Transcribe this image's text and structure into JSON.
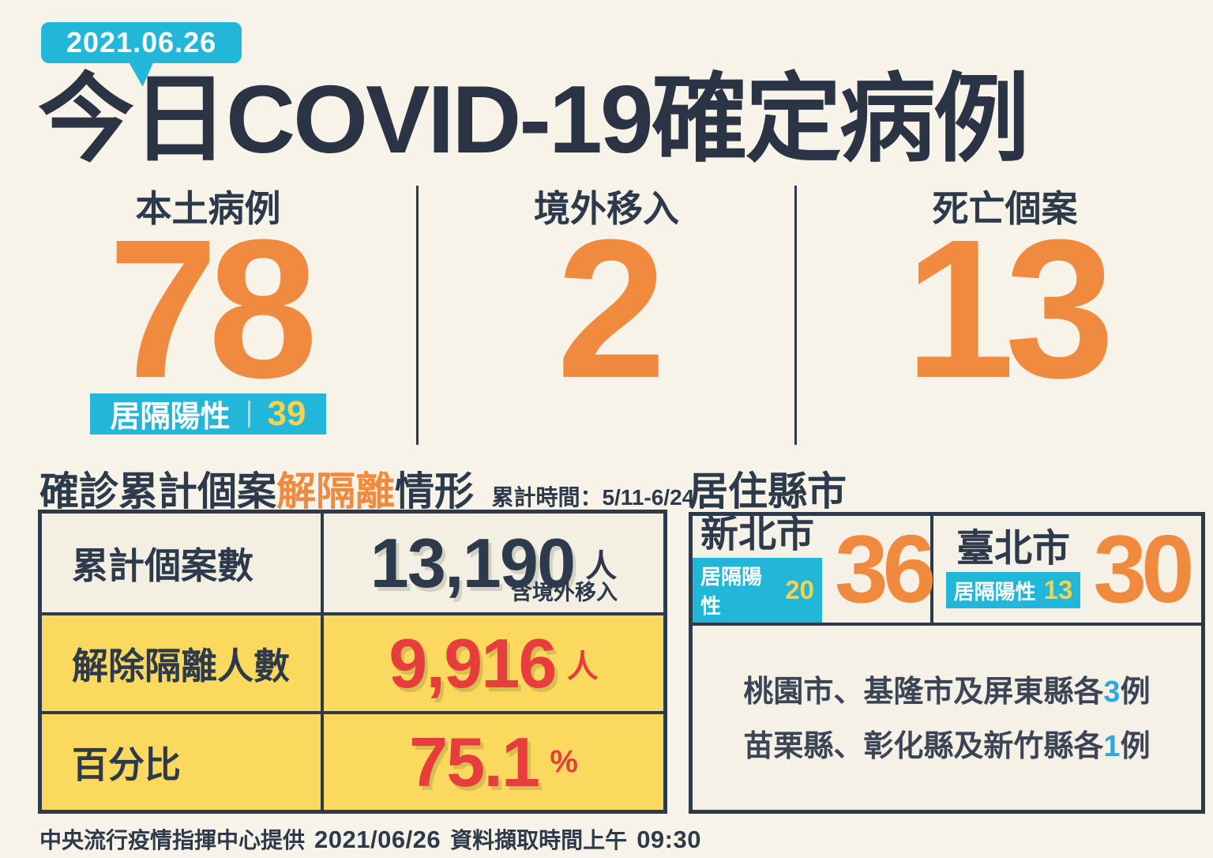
{
  "header": {
    "date_badge": "2021.06.26",
    "title": "今日COVID-19確定病例"
  },
  "stats": [
    {
      "label": "本土病例",
      "value": "78",
      "badge_label": "居隔陽性",
      "badge_value": "39"
    },
    {
      "label": "境外移入",
      "value": "2"
    },
    {
      "label": "死亡個案",
      "value": "13"
    }
  ],
  "isolation_section": {
    "title_prefix": "確診累計個案",
    "title_highlight": "解隔離",
    "title_suffix": "情形",
    "period_label": "累計時間：5/11-6/24",
    "rows": [
      {
        "label": "累計個案數",
        "value": "13,190",
        "unit": "人",
        "note": "含境外移入"
      },
      {
        "label": "解除隔離人數",
        "value": "9,916",
        "unit": "人"
      },
      {
        "label": "百分比",
        "value": "75.1",
        "unit": "%"
      }
    ]
  },
  "region_section": {
    "title": "居住縣市",
    "cities": [
      {
        "name": "新北市",
        "badge_label": "居隔陽性",
        "badge_value": "20",
        "value": "36"
      },
      {
        "name": "臺北市",
        "badge_label": "居隔陽性",
        "badge_value": "13",
        "value": "30"
      }
    ],
    "notes": [
      {
        "prefix": "桃園市、基隆市及屏東縣各",
        "count": "3",
        "suffix": "例"
      },
      {
        "prefix": "苗栗縣、彰化縣及新竹縣各",
        "count": "1",
        "suffix": "例"
      }
    ]
  },
  "footer": {
    "source": "中央流行疫情指揮中心提供",
    "date": "2021/06/26",
    "label": "資料擷取時間上午",
    "time": "09:30"
  },
  "colors": {
    "background": "#f7f3e9",
    "navy": "#2d3a4b",
    "orange": "#f08a3e",
    "cyan": "#22b6d9",
    "badge_number_yellow": "#f6d34d",
    "table_yellow": "#fbd95e",
    "red": "#e73e3d",
    "note_blue": "#2fa8e1"
  }
}
